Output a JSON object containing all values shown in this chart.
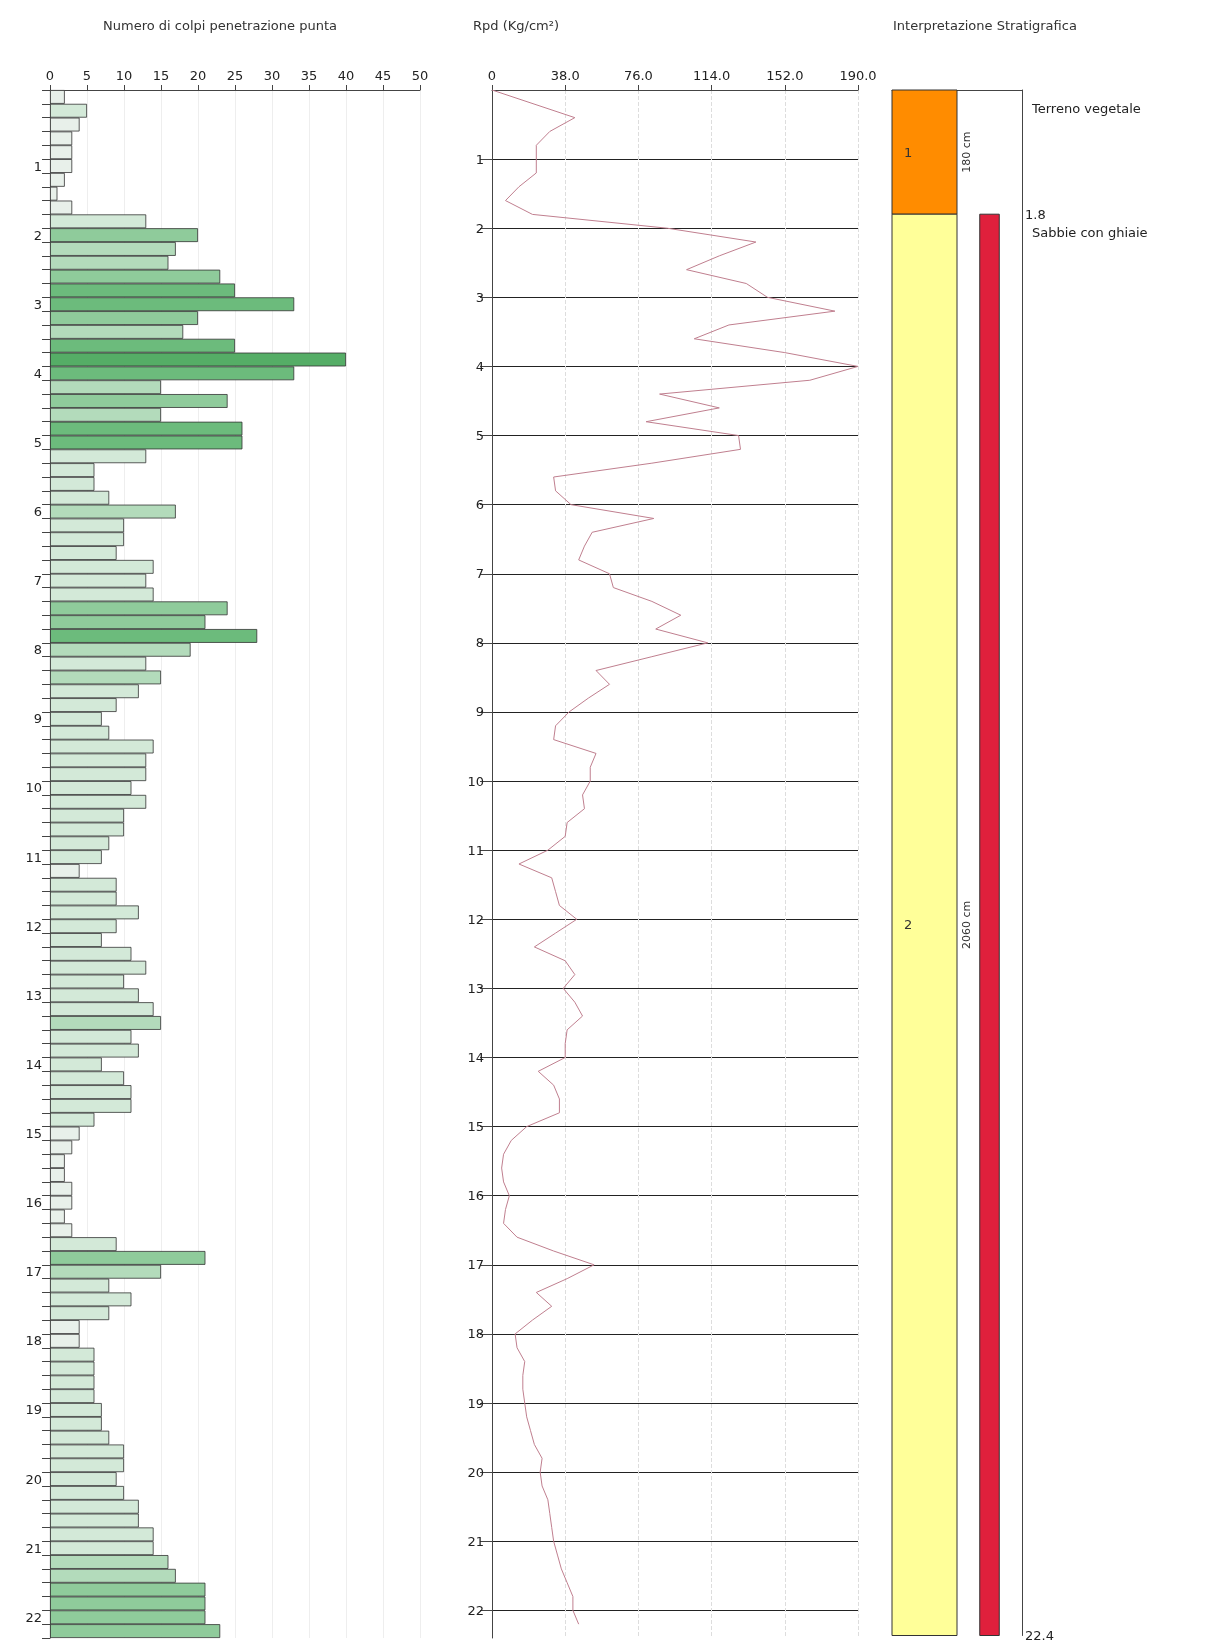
{
  "chart_data": [
    {
      "type": "bar",
      "title": "Numero di colpi penetrazione punta",
      "orientation": "horizontal",
      "grid": "x",
      "categories": [
        null,
        null,
        null,
        null,
        null,
        "1",
        null,
        null,
        null,
        null,
        "2",
        null,
        null,
        null,
        null,
        "3",
        null,
        null,
        null,
        null,
        "4",
        null,
        null,
        null,
        null,
        "5",
        null,
        null,
        null,
        null,
        "6",
        null,
        null,
        null,
        null,
        "7",
        null,
        null,
        null,
        null,
        "8",
        null,
        null,
        null,
        null,
        "9",
        null,
        null,
        null,
        null,
        "10",
        null,
        null,
        null,
        null,
        "11",
        null,
        null,
        null,
        null,
        "12",
        null,
        null,
        null,
        null,
        "13",
        null,
        null,
        null,
        null,
        "14",
        null,
        null,
        null,
        null,
        "15",
        null,
        null,
        null,
        null,
        "16",
        null,
        null,
        null,
        null,
        "17",
        null,
        null,
        null,
        null,
        "18",
        null,
        null,
        null,
        null,
        "19",
        null,
        null,
        null,
        null,
        "20",
        null,
        null,
        null,
        null,
        "21",
        null,
        null,
        null,
        null,
        "22",
        null
      ],
      "values": [
        2,
        5,
        4,
        3,
        3,
        3,
        2,
        1,
        3,
        13,
        20,
        17,
        16,
        23,
        25,
        33,
        20,
        18,
        25,
        40,
        33,
        15,
        24,
        15,
        26,
        26,
        13,
        6,
        6,
        8,
        17,
        10,
        10,
        9,
        14,
        13,
        14,
        24,
        21,
        28,
        19,
        13,
        15,
        12,
        9,
        7,
        8,
        14,
        13,
        13,
        11,
        13,
        10,
        10,
        8,
        7,
        4,
        9,
        9,
        12,
        9,
        7,
        11,
        13,
        10,
        12,
        14,
        15,
        11,
        12,
        7,
        10,
        11,
        11,
        6,
        4,
        3,
        2,
        2,
        3,
        3,
        2,
        3,
        9,
        21,
        15,
        8,
        11,
        8,
        4,
        4,
        6,
        6,
        6,
        6,
        7,
        7,
        8,
        10,
        10,
        9,
        10,
        12,
        12,
        14,
        14,
        16,
        17,
        21,
        21,
        21,
        23
      ],
      "colors": [
        "#e8f0ea",
        "#d3e9d8",
        "#e8f0ea",
        "#e8f0ea",
        "#e8f0ea",
        "#e8f0ea",
        "#e8f0ea",
        "#e8f0ea",
        "#e8f0ea",
        "#d3e9d8",
        "#8fcb9b",
        "#b3dbbb",
        "#b3dbbb",
        "#8fcb9b",
        "#6cbb7c",
        "#6cbb7c",
        "#8fcb9b",
        "#b3dbbb",
        "#6cbb7c",
        "#55ad66",
        "#6cbb7c",
        "#b3dbbb",
        "#8fcb9b",
        "#b3dbbb",
        "#6cbb7c",
        "#6cbb7c",
        "#d3e9d8",
        "#d3e9d8",
        "#d3e9d8",
        "#d3e9d8",
        "#b3dbbb",
        "#d3e9d8",
        "#d3e9d8",
        "#d3e9d8",
        "#d3e9d8",
        "#d3e9d8",
        "#d3e9d8",
        "#8fcb9b",
        "#8fcb9b",
        "#6cbb7c",
        "#b3dbbb",
        "#d3e9d8",
        "#b3dbbb",
        "#d3e9d8",
        "#d3e9d8",
        "#d3e9d8",
        "#d3e9d8",
        "#d3e9d8",
        "#d3e9d8",
        "#d3e9d8",
        "#d3e9d8",
        "#d3e9d8",
        "#d3e9d8",
        "#d3e9d8",
        "#d3e9d8",
        "#d3e9d8",
        "#e8f0ea",
        "#d3e9d8",
        "#d3e9d8",
        "#d3e9d8",
        "#d3e9d8",
        "#d3e9d8",
        "#d3e9d8",
        "#d3e9d8",
        "#d3e9d8",
        "#d3e9d8",
        "#d3e9d8",
        "#b3dbbb",
        "#d3e9d8",
        "#d3e9d8",
        "#d3e9d8",
        "#d3e9d8",
        "#d3e9d8",
        "#d3e9d8",
        "#d3e9d8",
        "#e8f0ea",
        "#e8f0ea",
        "#e8f0ea",
        "#e8f0ea",
        "#e8f0ea",
        "#e8f0ea",
        "#e8f0ea",
        "#e8f0ea",
        "#d3e9d8",
        "#8fcb9b",
        "#b3dbbb",
        "#d3e9d8",
        "#d3e9d8",
        "#d3e9d8",
        "#e8f0ea",
        "#e8f0ea",
        "#d3e9d8",
        "#d3e9d8",
        "#d3e9d8",
        "#d3e9d8",
        "#d3e9d8",
        "#d3e9d8",
        "#d3e9d8",
        "#d3e9d8",
        "#d3e9d8",
        "#d3e9d8",
        "#d3e9d8",
        "#d3e9d8",
        "#d3e9d8",
        "#d3e9d8",
        "#d3e9d8",
        "#b3dbbb",
        "#b3dbbb",
        "#8fcb9b",
        "#8fcb9b",
        "#8fcb9b",
        "#8fcb9b"
      ],
      "xlim": [
        0,
        50
      ],
      "xticks": [
        0,
        5,
        10,
        15,
        20,
        25,
        30,
        35,
        40,
        45,
        50
      ]
    },
    {
      "type": "line",
      "title": "Rpd (Kg/cm²)",
      "orientation": "horizontal",
      "grid": true,
      "x": [
        0,
        0.4,
        0.6,
        0.8,
        1.0,
        1.2,
        1.4,
        1.6,
        1.8,
        2.0,
        2.2,
        2.4,
        2.6,
        2.8,
        3.0,
        3.2,
        3.4,
        3.6,
        3.8,
        4.0,
        4.2,
        4.4,
        4.6,
        4.8,
        5.0,
        5.2,
        5.4,
        5.6,
        5.8,
        6.0,
        6.2,
        6.4,
        6.6,
        6.8,
        7.0,
        7.2,
        7.4,
        7.6,
        7.8,
        8.0,
        8.2,
        8.4,
        8.6,
        8.8,
        9.0,
        9.2,
        9.4,
        9.6,
        9.8,
        10.0,
        10.2,
        10.4,
        10.6,
        10.8,
        11.0,
        11.2,
        11.4,
        11.6,
        11.8,
        12.0,
        12.2,
        12.4,
        12.6,
        12.8,
        13.0,
        13.2,
        13.4,
        13.6,
        13.8,
        14.0,
        14.2,
        14.4,
        14.6,
        14.8,
        15.0,
        15.2,
        15.4,
        15.6,
        15.8,
        16.0,
        16.2,
        16.4,
        16.6,
        16.8,
        17.0,
        17.2,
        17.4,
        17.6,
        17.8,
        18.0,
        18.2,
        18.4,
        18.6,
        18.8,
        19.0,
        19.2,
        19.4,
        19.6,
        19.8,
        20.0,
        20.2,
        20.4,
        20.6,
        20.8,
        21.0,
        21.2,
        21.4,
        21.6,
        21.8,
        22.0,
        22.2
      ],
      "series": [
        {
          "color": "#c07f8f",
          "values": [
            0,
            43,
            30,
            23,
            23,
            23,
            14,
            7,
            21,
            91,
            137,
            118,
            101,
            132,
            143,
            178,
            123,
            105,
            152,
            190,
            165,
            87,
            118,
            80,
            128,
            129,
            83,
            32,
            33,
            41,
            84,
            52,
            48,
            45,
            61,
            63,
            83,
            98,
            85,
            112,
            83,
            54,
            61,
            50,
            40,
            33,
            32,
            54,
            51,
            51,
            47,
            48,
            39,
            38,
            29,
            14,
            31,
            33,
            35,
            44,
            33,
            22,
            38,
            43,
            37,
            43,
            47,
            39,
            38,
            38,
            24,
            32,
            35,
            35,
            18,
            10,
            6,
            5,
            6,
            9,
            7,
            6,
            13,
            32,
            53,
            39,
            23,
            31,
            21,
            12,
            13,
            17,
            16,
            16,
            17,
            18,
            20,
            22,
            26,
            25,
            26,
            29,
            30,
            31,
            32,
            34,
            36,
            39,
            42,
            42,
            45
          ]
        }
      ],
      "xlim": [
        0,
        190
      ],
      "xticks": [
        0,
        {
          "value": 38,
          "label": "38.0"
        },
        {
          "value": 76,
          "label": "76.0"
        },
        {
          "value": 114,
          "label": "114.0"
        },
        {
          "value": 152,
          "label": "152.0"
        },
        {
          "value": 190,
          "label": "190.0"
        }
      ],
      "ylim": [
        22.4,
        0
      ],
      "yticks": [
        1,
        2,
        3,
        4,
        5,
        6,
        7,
        8,
        9,
        10,
        11,
        12,
        13,
        14,
        15,
        16,
        17,
        18,
        19,
        20,
        21,
        22
      ]
    },
    {
      "type": "bar",
      "title": "Interpretazione Stratigrafica",
      "stacked": true,
      "categories": [
        null,
        null
      ],
      "series": [
        {
          "name": "Terreno vegetale",
          "color": "#ff8c00",
          "values": [
            1.8,
            null
          ]
        },
        {
          "name": "Sabbie con ghiaie",
          "color": "#ffff99",
          "values": [
            20.6,
            null
          ]
        },
        {
          "color": "#e0203c",
          "values": [
            null,
            20.6
          ],
          "base": [
            null,
            1.8
          ]
        }
      ],
      "ylim": [
        22.4,
        0
      ],
      "yticks": [
        1.8,
        22.4
      ],
      "annotations": [
        "1",
        "180 cm",
        "2",
        "2060 cm"
      ]
    }
  ]
}
